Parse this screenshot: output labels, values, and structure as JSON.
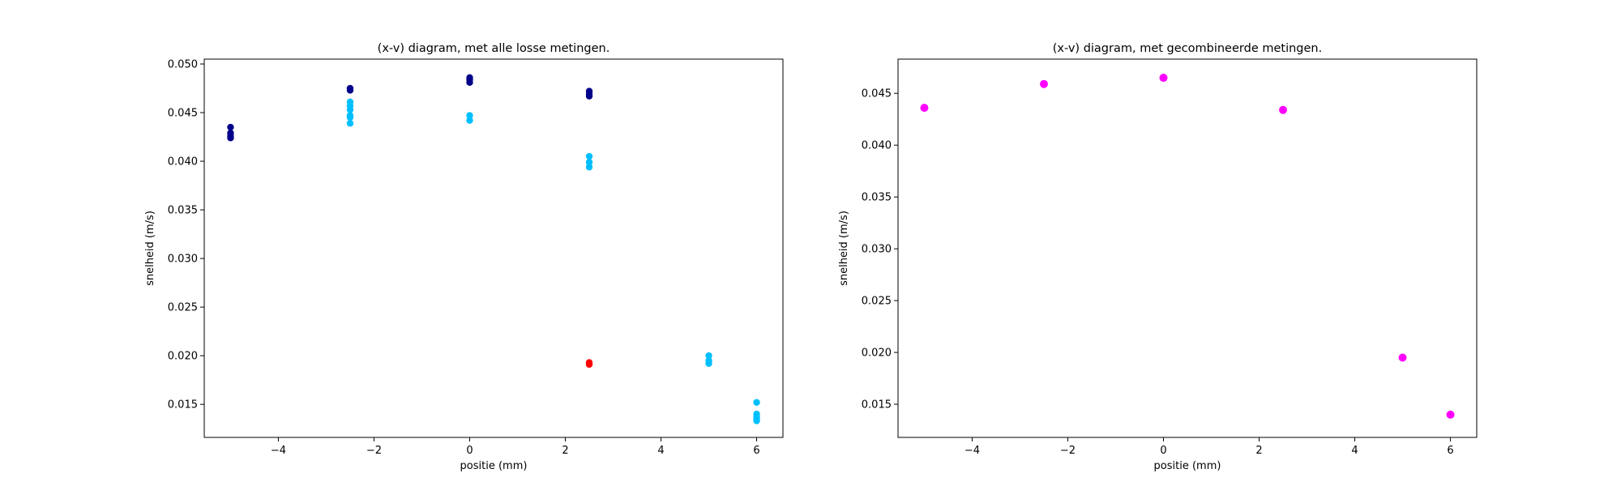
{
  "chart_data": [
    {
      "type": "scatter",
      "title": "(x-v) diagram, met alle losse metingen.",
      "xlabel": "positie (mm)",
      "ylabel": "snelheid (m/s)",
      "xlim": [
        -5.55,
        6.55
      ],
      "ylim": [
        0.0116,
        0.0505
      ],
      "xticks": [
        -4,
        -2,
        0,
        2,
        4,
        6
      ],
      "yticks": [
        0.015,
        0.02,
        0.025,
        0.03,
        0.035,
        0.04,
        0.045,
        0.05
      ],
      "xtick_labels": [
        "−4",
        "−2",
        "0",
        "2",
        "4",
        "6"
      ],
      "ytick_labels": [
        "0.015",
        "0.020",
        "0.025",
        "0.030",
        "0.035",
        "0.040",
        "0.045",
        "0.050"
      ],
      "grid": false,
      "series": [
        {
          "color": "#00008b",
          "x": [
            -5,
            -5,
            -5,
            -5,
            -2.5,
            -2.5,
            0,
            0,
            0,
            2.5,
            2.5,
            2.5
          ],
          "y": [
            0.0435,
            0.0429,
            0.0426,
            0.0424,
            0.0475,
            0.0473,
            0.0486,
            0.0484,
            0.0481,
            0.0472,
            0.0469,
            0.0467
          ]
        },
        {
          "color": "#00bfff",
          "x": [
            -2.5,
            -2.5,
            -2.5,
            -2.5,
            -2.5,
            -2.5,
            0,
            0,
            2.5,
            2.5,
            2.5,
            5,
            5,
            5,
            6,
            6,
            6,
            6,
            6
          ],
          "y": [
            0.0461,
            0.0457,
            0.0453,
            0.0447,
            0.0445,
            0.0439,
            0.0447,
            0.0442,
            0.0405,
            0.0399,
            0.0394,
            0.02,
            0.0195,
            0.0192,
            0.0152,
            0.014,
            0.0137,
            0.0135,
            0.0133
          ]
        },
        {
          "color": "#ff0000",
          "x": [
            2.5,
            2.5
          ],
          "y": [
            0.0193,
            0.0191
          ]
        }
      ]
    },
    {
      "type": "scatter",
      "title": "(x-v) diagram, met gecombineerde metingen.",
      "xlabel": "positie (mm)",
      "ylabel": "snelheid (m/s)",
      "xlim": [
        -5.55,
        6.55
      ],
      "ylim": [
        0.0118,
        0.0483
      ],
      "xticks": [
        -4,
        -2,
        0,
        2,
        4,
        6
      ],
      "yticks": [
        0.015,
        0.02,
        0.025,
        0.03,
        0.035,
        0.04,
        0.045
      ],
      "xtick_labels": [
        "−4",
        "−2",
        "0",
        "2",
        "4",
        "6"
      ],
      "ytick_labels": [
        "0.015",
        "0.020",
        "0.025",
        "0.030",
        "0.035",
        "0.040",
        "0.045"
      ],
      "grid": false,
      "series": [
        {
          "color": "#ff00ff",
          "x": [
            -5,
            -2.5,
            0,
            2.5,
            5,
            6
          ],
          "y": [
            0.0436,
            0.0459,
            0.0465,
            0.0434,
            0.0195,
            0.014
          ]
        }
      ]
    }
  ]
}
